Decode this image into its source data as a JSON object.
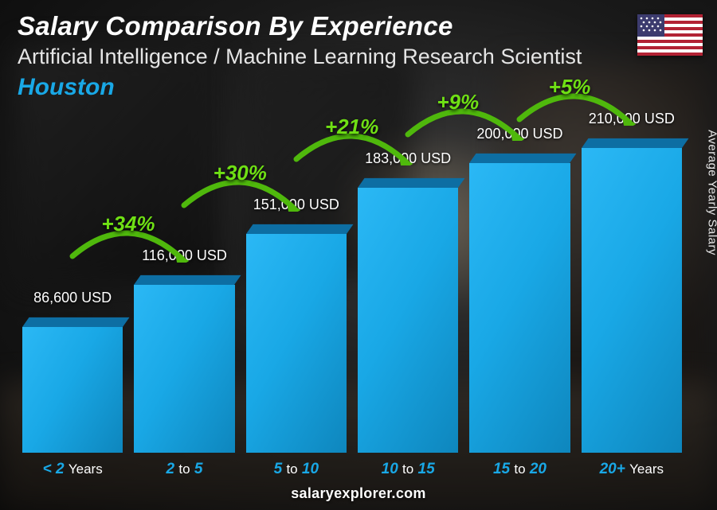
{
  "title": "Salary Comparison By Experience",
  "subtitle": "Artificial Intelligence / Machine Learning Research Scientist",
  "location": "Houston",
  "location_color": "#19a8e6",
  "yaxis_label": "Average Yearly Salary",
  "footer": "salaryexplorer.com",
  "flag": {
    "red": "#b22234",
    "white": "#ffffff",
    "blue": "#3c3b6e"
  },
  "chart": {
    "type": "bar",
    "bar_color": "#19a8e6",
    "bar_top_color": "#0d6ea3",
    "bar_front_gradient_light": "#2bb8f5",
    "bar_front_gradient_dark": "#0e86bd",
    "category_num_color": "#19a8e6",
    "pct_color": "#6fe014",
    "arrow_color": "#4fb80c",
    "value_color": "#ffffff",
    "height_scale_max": 230000,
    "categories": [
      {
        "label_pre": "< 2",
        "label_post": "Years",
        "value": 86600,
        "value_text": "86,600 USD"
      },
      {
        "label_pre": "2",
        "label_mid": "to",
        "label_post2": "5",
        "value": 116000,
        "value_text": "116,000 USD",
        "pct": "+34%"
      },
      {
        "label_pre": "5",
        "label_mid": "to",
        "label_post2": "10",
        "value": 151000,
        "value_text": "151,000 USD",
        "pct": "+30%"
      },
      {
        "label_pre": "10",
        "label_mid": "to",
        "label_post2": "15",
        "value": 183000,
        "value_text": "183,000 USD",
        "pct": "+21%"
      },
      {
        "label_pre": "15",
        "label_mid": "to",
        "label_post2": "20",
        "value": 200000,
        "value_text": "200,000 USD",
        "pct": "+9%"
      },
      {
        "label_pre": "20+",
        "label_post": "Years",
        "value": 210000,
        "value_text": "210,000 USD",
        "pct": "+5%"
      }
    ]
  }
}
